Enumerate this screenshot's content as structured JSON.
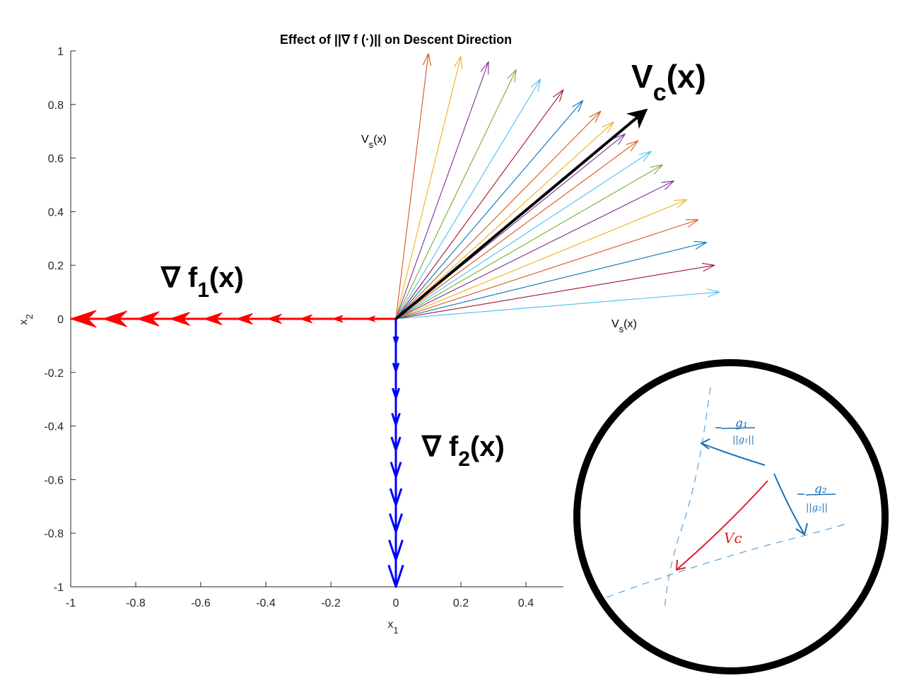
{
  "chart_data": {
    "type": "line",
    "title": "Effect of ||∇ f (·)|| on Descent Direction",
    "xlabel": {
      "main": "x",
      "sub": "1"
    },
    "ylabel": {
      "main": "x",
      "sub": "2"
    },
    "xlim": [
      -1,
      0.5
    ],
    "ylim": [
      -1,
      1
    ],
    "xticks": [
      {
        "v": -1,
        "t": "-1"
      },
      {
        "v": -0.8,
        "t": "-0.8"
      },
      {
        "v": -0.6,
        "t": "-0.6"
      },
      {
        "v": -0.4,
        "t": "-0.4"
      },
      {
        "v": -0.2,
        "t": "-0.2"
      },
      {
        "v": 0,
        "t": "0"
      },
      {
        "v": 0.2,
        "t": "0.2"
      },
      {
        "v": 0.4,
        "t": "0.4"
      }
    ],
    "yticks": [
      {
        "v": 1,
        "t": "1"
      },
      {
        "v": 0.8,
        "t": "0.8"
      },
      {
        "v": 0.6,
        "t": "0.6"
      },
      {
        "v": 0.4,
        "t": "0.4"
      },
      {
        "v": 0.2,
        "t": "0.2"
      },
      {
        "v": 0,
        "t": "0"
      },
      {
        "v": -0.2,
        "t": "-0.2"
      },
      {
        "v": -0.4,
        "t": "-0.4"
      },
      {
        "v": -0.6,
        "t": "-0.6"
      },
      {
        "v": -0.8,
        "t": "-0.8"
      },
      {
        "v": -1,
        "t": "-1"
      }
    ],
    "grid": false,
    "gradient_f1": {
      "color": "#ff0000",
      "arrows": [
        [
          0,
          0,
          -0.09,
          0
        ],
        [
          0,
          0,
          -0.195,
          0
        ],
        [
          0,
          0,
          -0.295,
          0
        ],
        [
          0,
          0,
          -0.395,
          0
        ],
        [
          0,
          0,
          -0.49,
          0
        ],
        [
          0,
          0,
          -0.59,
          0
        ],
        [
          0,
          0,
          -0.695,
          0
        ],
        [
          0,
          0,
          -0.795,
          0
        ],
        [
          0,
          0,
          -0.9,
          0
        ],
        [
          0,
          0,
          -1.0,
          0
        ]
      ]
    },
    "gradient_f2": {
      "color": "#0000ff",
      "arrows": [
        [
          0,
          0,
          0,
          -0.09
        ],
        [
          0,
          0,
          0,
          -0.195
        ],
        [
          0,
          0,
          0,
          -0.295
        ],
        [
          0,
          0,
          0,
          -0.395
        ],
        [
          0,
          0,
          0,
          -0.49
        ],
        [
          0,
          0,
          0,
          -0.59
        ],
        [
          0,
          0,
          0,
          -0.695
        ],
        [
          0,
          0,
          0,
          -0.795
        ],
        [
          0,
          0,
          0,
          -0.9
        ],
        [
          0,
          0,
          0,
          -1.0
        ]
      ]
    },
    "vs_arrows": [
      {
        "x": 0.1,
        "y": 0.99,
        "color": "#d95319"
      },
      {
        "x": 0.2,
        "y": 0.98,
        "color": "#edb120"
      },
      {
        "x": 0.285,
        "y": 0.96,
        "color": "#7e2f8e"
      },
      {
        "x": 0.37,
        "y": 0.93,
        "color": "#77ac30"
      },
      {
        "x": 0.445,
        "y": 0.895,
        "color": "#4dbeee"
      },
      {
        "x": 0.515,
        "y": 0.855,
        "color": "#a2142f"
      },
      {
        "x": 0.575,
        "y": 0.815,
        "color": "#0072bd"
      },
      {
        "x": 0.63,
        "y": 0.775,
        "color": "#d95319"
      },
      {
        "x": 0.67,
        "y": 0.735,
        "color": "#edb120"
      },
      {
        "x": 0.705,
        "y": 0.69,
        "color": "#7e2f8e"
      },
      {
        "x": 0.745,
        "y": 0.665,
        "color": "#d95319"
      },
      {
        "x": 0.785,
        "y": 0.625,
        "color": "#4dbeee"
      },
      {
        "x": 0.82,
        "y": 0.575,
        "color": "#77ac30"
      },
      {
        "x": 0.855,
        "y": 0.515,
        "color": "#7e2f8e"
      },
      {
        "x": 0.895,
        "y": 0.445,
        "color": "#edb120"
      },
      {
        "x": 0.93,
        "y": 0.37,
        "color": "#d95319"
      },
      {
        "x": 0.955,
        "y": 0.285,
        "color": "#0072bd"
      },
      {
        "x": 0.98,
        "y": 0.2,
        "color": "#a2142f"
      },
      {
        "x": 0.995,
        "y": 0.1,
        "color": "#4dbeee"
      }
    ],
    "vc_arrow": {
      "x": 0.77,
      "y": 0.78,
      "color": "#000000"
    },
    "annotations": {
      "f1": {
        "base": "∇ f",
        "sub": "1",
        "tail": "(x)"
      },
      "f2": {
        "base": "∇ f",
        "sub": "2",
        "tail": "(x)"
      },
      "vc": {
        "base": "V",
        "sub": "c",
        "tail": "(x)"
      },
      "vs_top": {
        "base": "V",
        "sub": "s",
        "tail": "(x)"
      },
      "vs_right": {
        "base": "V",
        "sub": "s",
        "tail": "(x)"
      }
    }
  },
  "inset": {
    "g1_num": "g₁",
    "g1_den": "||g₁||",
    "g2_num": "g₂",
    "g2_den": "||g₂||",
    "vc_label": "Vᴄ",
    "ink_blue": "#1f6fb0",
    "ink_red": "#e0202a",
    "ring_color": "#000000"
  }
}
